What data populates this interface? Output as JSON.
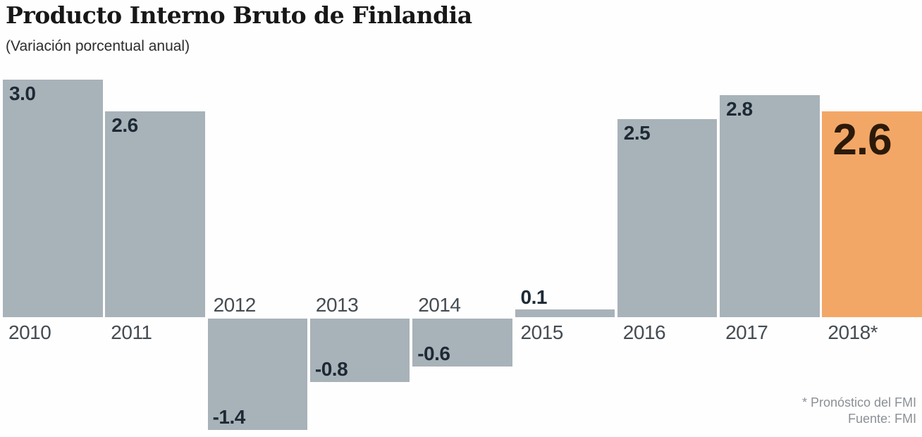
{
  "header": {
    "title": "Producto Interno Bruto de Finlandia",
    "subtitle": "(Variación porcentual anual)"
  },
  "footnote": {
    "line1": "* Pronóstico del FMI",
    "line2": "Fuente: FMI"
  },
  "chart_data": {
    "type": "bar",
    "title": "Producto Interno Bruto de Finlandia",
    "subtitle": "(Variación porcentual anual)",
    "categories": [
      "2010",
      "2011",
      "2012",
      "2013",
      "2014",
      "2015",
      "2016",
      "2017",
      "2018*"
    ],
    "values": [
      3.0,
      2.6,
      -1.4,
      -0.8,
      -0.6,
      0.1,
      2.5,
      2.8,
      2.6
    ],
    "value_labels": [
      "3.0",
      "2.6",
      "-1.4",
      "-0.8",
      "-0.6",
      "0.1",
      "2.5",
      "2.8",
      "2.6"
    ],
    "unit": "percent annual change",
    "highlight_index": 8,
    "ylim": [
      -1.5,
      3.0
    ],
    "grid": false,
    "legend_position": "none",
    "source": "FMI",
    "colors": {
      "bar": "#a8b2b9",
      "highlight_bar": "#f3a766",
      "value_label": "#1d2a35",
      "highlight_value_label": "#2c1a09",
      "year_label": "#454c52",
      "footnote": "#8b9095",
      "background": "#fefefe"
    }
  }
}
